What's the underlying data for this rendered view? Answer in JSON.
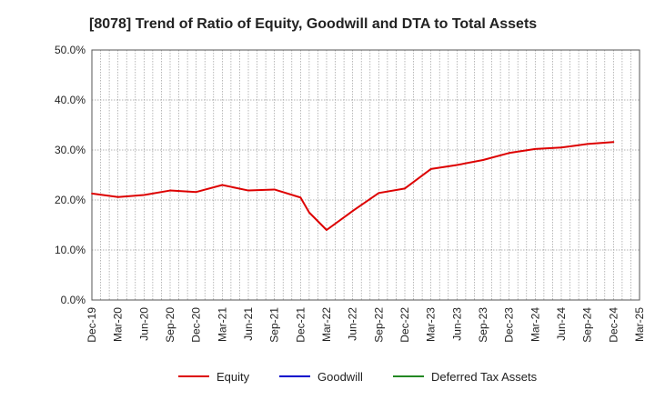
{
  "chart_data": {
    "type": "line",
    "title": "[8078]  Trend of Ratio of Equity, Goodwill and DTA to Total Assets",
    "xlabel": "",
    "ylabel": "",
    "ylim": [
      0,
      50
    ],
    "yticks": [
      0,
      10,
      20,
      30,
      40,
      50
    ],
    "ytick_labels": [
      "0.0%",
      "10.0%",
      "20.0%",
      "30.0%",
      "40.0%",
      "50.0%"
    ],
    "x_range": [
      "2019-12",
      "2025-03"
    ],
    "x_tick_labels": [
      "Dec-19",
      "Mar-20",
      "Jun-20",
      "Sep-20",
      "Dec-20",
      "Mar-21",
      "Jun-21",
      "Sep-21",
      "Dec-21",
      "Mar-22",
      "Jun-22",
      "Sep-22",
      "Dec-22",
      "Mar-23",
      "Jun-23",
      "Sep-23",
      "Dec-23",
      "Mar-24",
      "Jun-24",
      "Sep-24",
      "Dec-24",
      "Mar-25"
    ],
    "grid": true,
    "grid_style": "dotted",
    "legend_position": "bottom",
    "series": [
      {
        "name": "Equity",
        "color": "#dd0000",
        "points": [
          [
            "Dec-19",
            21.3
          ],
          [
            "Mar-20",
            20.6
          ],
          [
            "Jun-20",
            21.0
          ],
          [
            "Sep-20",
            21.9
          ],
          [
            "Dec-20",
            21.6
          ],
          [
            "Mar-21",
            23.0
          ],
          [
            "Jun-21",
            21.9
          ],
          [
            "Sep-21",
            22.1
          ],
          [
            "Dec-21",
            20.5
          ],
          [
            "Jan-22",
            17.5
          ],
          [
            "Mar-22",
            14.0
          ],
          [
            "Jun-22",
            17.8
          ],
          [
            "Sep-22",
            21.4
          ],
          [
            "Dec-22",
            22.3
          ],
          [
            "Mar-23",
            26.2
          ],
          [
            "Jun-23",
            27.0
          ],
          [
            "Sep-23",
            28.0
          ],
          [
            "Dec-23",
            29.4
          ],
          [
            "Mar-24",
            30.2
          ],
          [
            "Jun-24",
            30.5
          ],
          [
            "Sep-24",
            31.2
          ],
          [
            "Dec-24",
            31.6
          ]
        ]
      },
      {
        "name": "Goodwill",
        "color": "#0000cc",
        "points": []
      },
      {
        "name": "Deferred Tax Assets",
        "color": "#228822",
        "points": []
      }
    ]
  }
}
